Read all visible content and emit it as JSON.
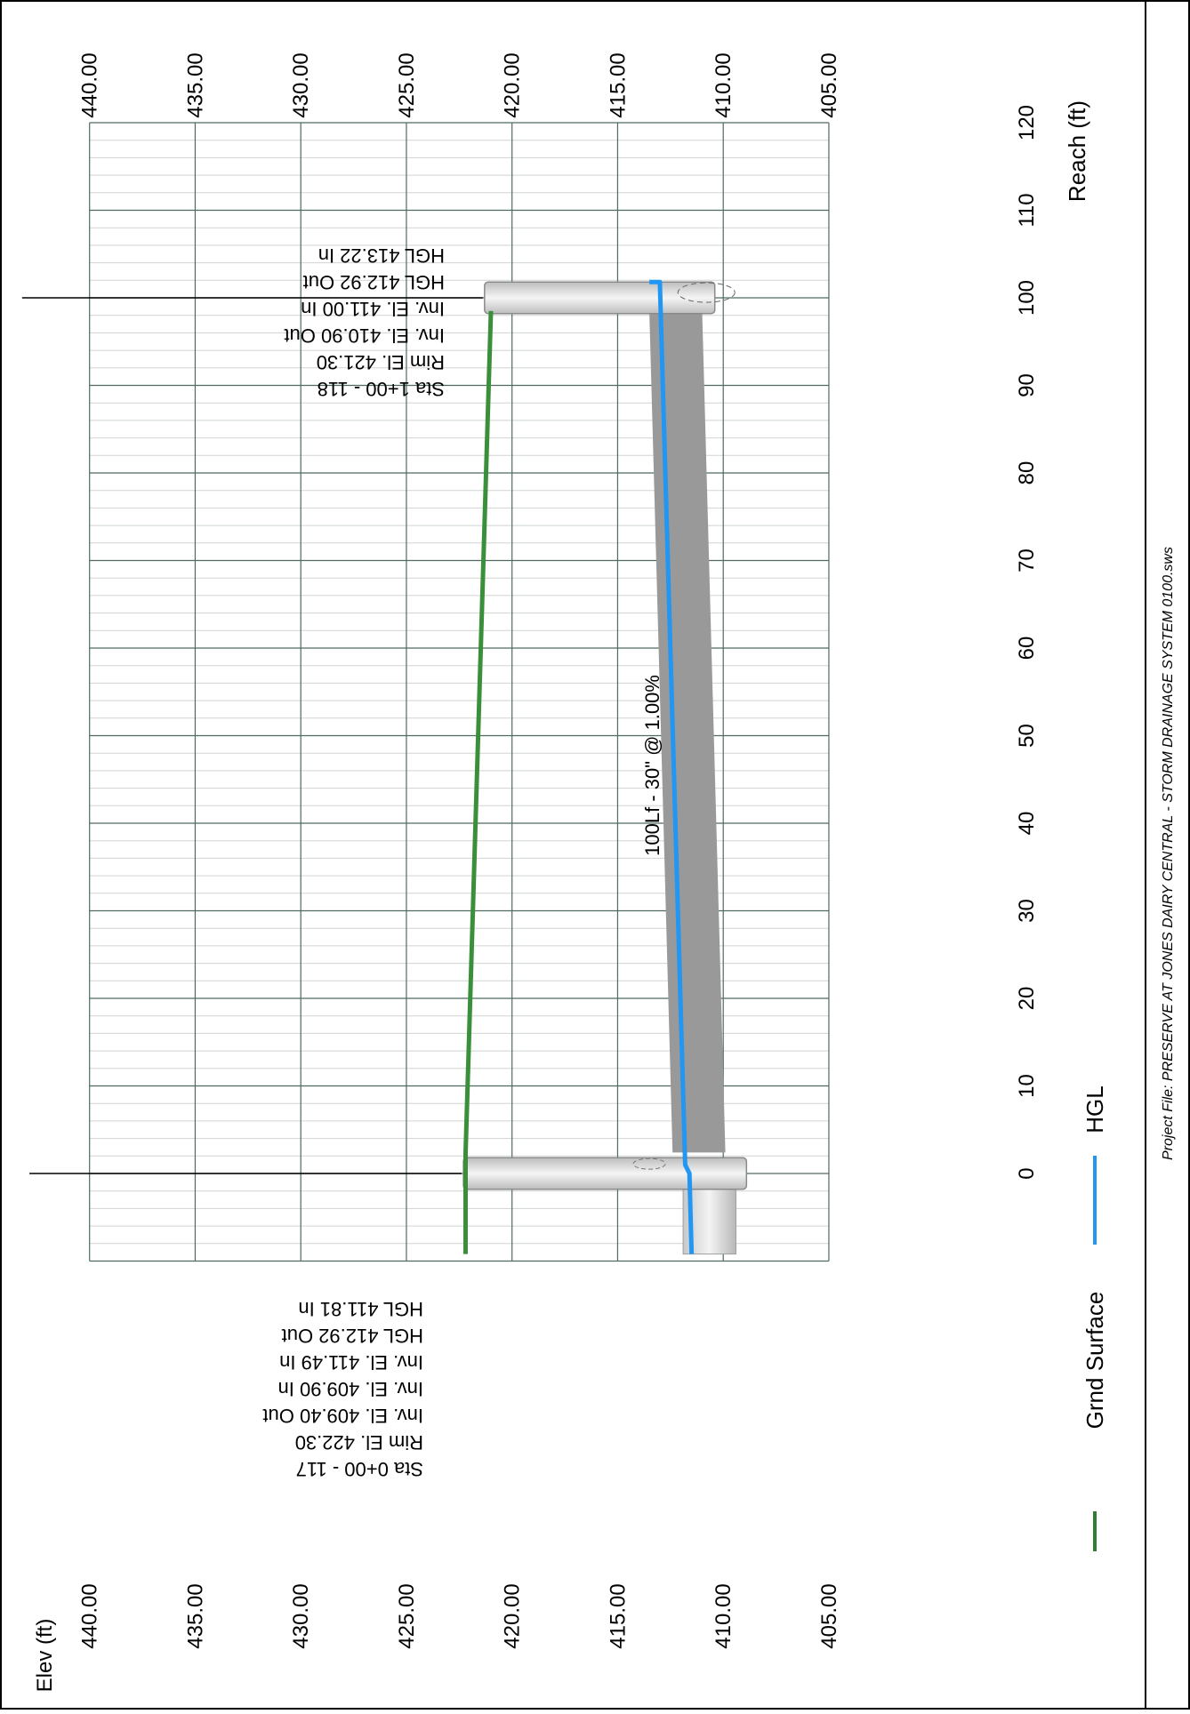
{
  "footer": {
    "project_file": "Project File: PRESERVE AT JONES DAIRY CENTRAL - STORM DRAINAGE SYSTEM 0100.sws"
  },
  "chart_data": {
    "type": "line",
    "title": "",
    "xlabel": "Reach (ft)",
    "ylabel": "Elev (ft)",
    "xlim": [
      -10,
      120
    ],
    "ylim": [
      405,
      440
    ],
    "x_ticks": [
      0,
      10,
      20,
      30,
      40,
      50,
      60,
      70,
      80,
      90,
      100,
      110,
      120
    ],
    "y_ticks": [
      "405.00",
      "410.00",
      "415.00",
      "420.00",
      "425.00",
      "430.00",
      "435.00",
      "440.00"
    ],
    "grid": true,
    "orientation": "rotated-90-clockwise",
    "legend": {
      "placement": "bottom",
      "entries": [
        {
          "name": "Grnd Surface",
          "color": "#2e7d32"
        },
        {
          "name": "HGL",
          "color": "#2196f3"
        }
      ]
    },
    "series": [
      {
        "name": "Grnd Surface",
        "color": "#3a8f3a",
        "points": [
          [
            -9.2,
            422.2
          ],
          [
            2.4,
            422.2
          ],
          [
            98.5,
            421.0
          ]
        ]
      },
      {
        "name": "HGL",
        "color": "#2196f3",
        "points": [
          [
            -9.2,
            411.5
          ],
          [
            0,
            411.6
          ],
          [
            1,
            411.8
          ],
          [
            101.5,
            413.0
          ],
          [
            101.8,
            413.0
          ],
          [
            101.8,
            413.5
          ]
        ]
      }
    ],
    "pipe": {
      "label": "100Lf - 30\" @ 1.00%",
      "start_x": 2.4,
      "end_x": 98.5,
      "invert_start": 409.9,
      "invert_end": 411.0,
      "diameter_ft": 2.5,
      "color": "#999999"
    },
    "upstream_pipe": {
      "start_x": -9.2,
      "end_x": -1.3,
      "invert": 409.4,
      "diameter_ft": 2.5
    },
    "structures": [
      {
        "x": 0,
        "rim": 422.3,
        "bottom": 408.9,
        "width_ft": 3.6,
        "labels": [
          "Sta 0+00 - 117",
          "Rim El. 422.30",
          "Inv. El. 409.40 Out",
          "Inv. El. 409.90 In",
          "Inv. El. 411.49 In",
          "HGL 412.92 Out",
          "HGL 411.81 In"
        ]
      },
      {
        "x": 100,
        "rim": 421.3,
        "bottom": 410.4,
        "width_ft": 3.6,
        "labels": [
          "Sta 1+00 - 118",
          "Rim El. 421.30",
          "Inv. El. 410.90 Out",
          "Inv. El. 411.00 In",
          "HGL 412.92 Out",
          "HGL 413.22 In"
        ]
      }
    ]
  }
}
